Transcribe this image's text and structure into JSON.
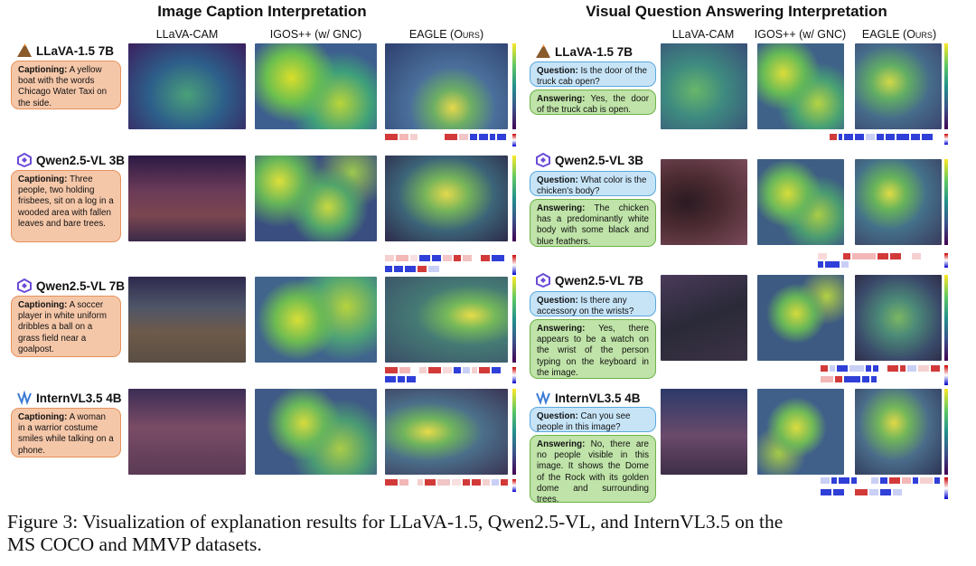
{
  "left": {
    "title": "Image Caption Interpretation",
    "col_llava": "LLaVA-CAM",
    "col_igos": "IGOS++ (w/ GNC)",
    "col_eagle": "EAGLE (Ours)",
    "rows": [
      {
        "model": "LLaVA-1.5 7B",
        "label": "Captioning:",
        "text": "A yellow boat with the words Chicago Water Taxi on the side."
      },
      {
        "model": "Qwen2.5-VL 3B",
        "label": "Captioning:",
        "text": "Three people, two holding frisbees, sit on a log in a wooded area with fallen leaves and bare trees."
      },
      {
        "model": "Qwen2.5-VL 7B",
        "label": "Captioning:",
        "text": "A soccer player in white uniform dribbles a ball on a grass field near a goalpost."
      },
      {
        "model": "InternVL3.5 4B",
        "label": "Captioning:",
        "text": "A woman in a warrior costume smiles while talking on a phone."
      }
    ]
  },
  "right": {
    "title": "Visual Question Answering Interpretation",
    "col_llava": "LLaVA-CAM",
    "col_igos": "IGOS++ (w/ GNC)",
    "col_eagle": "EAGLE (Ours)",
    "rows": [
      {
        "model": "LLaVA-1.5 7B",
        "q_label": "Question:",
        "question": "Is the door of the truck cab open?",
        "a_label": "Answering:",
        "answer": "Yes, the door of the truck cab is open."
      },
      {
        "model": "Qwen2.5-VL 3B",
        "q_label": "Question:",
        "question": "What color is the chicken's body?",
        "a_label": "Answering:",
        "answer": "The chicken has a predominantly white body with some black and blue feathers."
      },
      {
        "model": "Qwen2.5-VL 7B",
        "q_label": "Question:",
        "question": "Is there any accessory on the wrists?",
        "a_label": "Answering:",
        "answer": "Yes, there appears to be a watch on the wrist of the person typing on the keyboard in the image."
      },
      {
        "model": "InternVL3.5 4B",
        "q_label": "Question:",
        "question": "Can you see people in this image?",
        "a_label": "Answering:",
        "answer": "No, there are no people visible in this image. It shows the Dome of the Rock with its golden dome and surrounding trees."
      }
    ]
  },
  "caption": {
    "line1": "Figure 3: Visualization of explanation results for LLaVA-1.5, Qwen2.5-VL, and InternVL3.5 on the",
    "line2": "MS COCO and MMVP datasets."
  },
  "colors": {
    "caption_fill": "#f5c7a9",
    "question_fill": "#c7e4f7",
    "answer_fill": "#bfe3a8",
    "token_red": "#d23a3a",
    "token_blue": "#2f3fd8"
  },
  "icons": {
    "llava": "volcano-icon",
    "qwen": "qwen-logo-icon",
    "internvl": "internvl-logo-icon"
  }
}
